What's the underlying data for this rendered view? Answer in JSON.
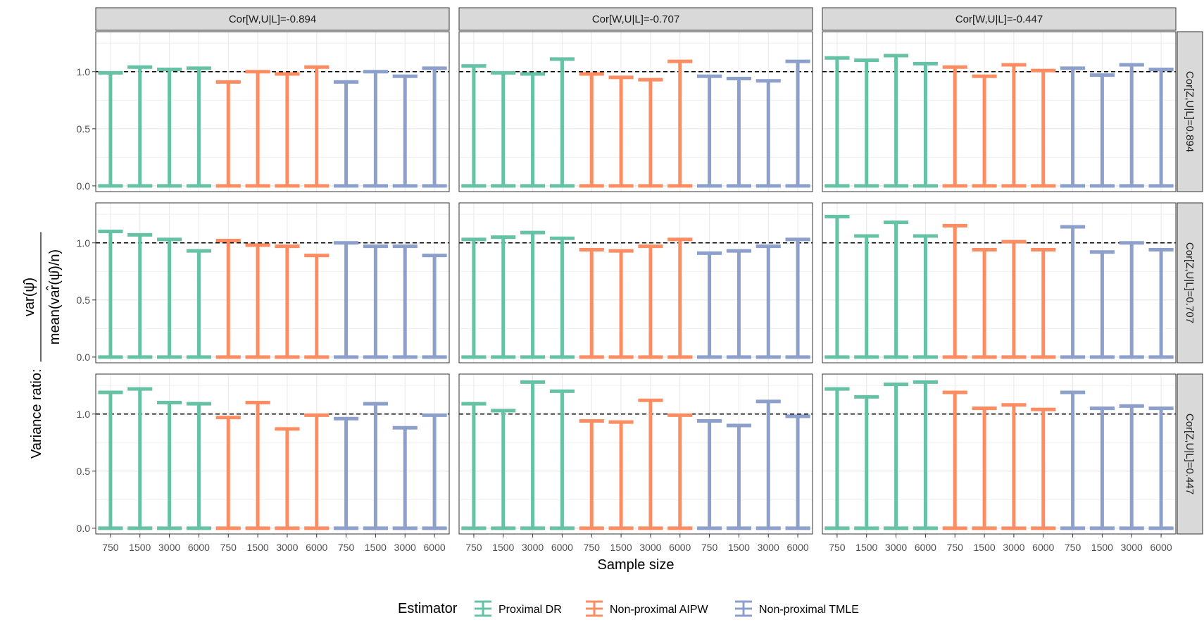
{
  "chart_data": {
    "type": "errorbar",
    "ylabel_prefix": "Variance ratio:",
    "ylabel_numerator": "var(ψ̂)",
    "ylabel_denominator": "mean(var̂(ψ̂)/n)",
    "xlabel": "Sample size",
    "ylim": [
      -0.05,
      1.35
    ],
    "yticks": [
      0.0,
      0.5,
      1.0
    ],
    "ytick_labels": [
      "0.0",
      "0.5",
      "1.0"
    ],
    "reference_line": 1.0,
    "sample_sizes": [
      "750",
      "1500",
      "3000",
      "6000"
    ],
    "col_facets": [
      "Cor[W,U|L]=-0.894",
      "Cor[W,U|L]=-0.707",
      "Cor[W,U|L]=-0.447"
    ],
    "row_facets": [
      "Cor[Z,U|L]=0.894",
      "Cor[Z,U|L]=0.707",
      "Cor[Z,U|L]=0.447"
    ],
    "estimators": [
      {
        "name": "Proximal DR",
        "color": "#66c2a5"
      },
      {
        "name": "Non-proximal AIPW",
        "color": "#fc8d62"
      },
      {
        "name": "Non-proximal TMLE",
        "color": "#8da0cb"
      }
    ],
    "legend_title": "Estimator",
    "panels": [
      [
        {
          "Proximal DR": [
            0.99,
            1.04,
            1.02,
            1.03
          ],
          "Non-proximal AIPW": [
            0.91,
            1.0,
            0.98,
            1.04
          ],
          "Non-proximal TMLE": [
            0.91,
            1.0,
            0.96,
            1.03
          ]
        },
        {
          "Proximal DR": [
            1.05,
            0.99,
            0.98,
            1.11
          ],
          "Non-proximal AIPW": [
            0.98,
            0.95,
            0.93,
            1.09
          ],
          "Non-proximal TMLE": [
            0.96,
            0.94,
            0.92,
            1.09
          ]
        },
        {
          "Proximal DR": [
            1.12,
            1.1,
            1.14,
            1.07
          ],
          "Non-proximal AIPW": [
            1.04,
            0.96,
            1.06,
            1.01
          ],
          "Non-proximal TMLE": [
            1.03,
            0.97,
            1.06,
            1.02
          ]
        }
      ],
      [
        {
          "Proximal DR": [
            1.1,
            1.07,
            1.03,
            0.93
          ],
          "Non-proximal AIPW": [
            1.02,
            0.98,
            0.97,
            0.89
          ],
          "Non-proximal TMLE": [
            1.0,
            0.97,
            0.97,
            0.89
          ]
        },
        {
          "Proximal DR": [
            1.03,
            1.05,
            1.09,
            1.04
          ],
          "Non-proximal AIPW": [
            0.94,
            0.93,
            0.97,
            1.03
          ],
          "Non-proximal TMLE": [
            0.91,
            0.93,
            0.97,
            1.03
          ]
        },
        {
          "Proximal DR": [
            1.23,
            1.06,
            1.18,
            1.06
          ],
          "Non-proximal AIPW": [
            1.15,
            0.94,
            1.01,
            0.94
          ],
          "Non-proximal TMLE": [
            1.14,
            0.92,
            1.0,
            0.94
          ]
        }
      ],
      [
        {
          "Proximal DR": [
            1.19,
            1.22,
            1.1,
            1.09
          ],
          "Non-proximal AIPW": [
            0.97,
            1.1,
            0.87,
            0.99
          ],
          "Non-proximal TMLE": [
            0.96,
            1.09,
            0.88,
            0.99
          ]
        },
        {
          "Proximal DR": [
            1.09,
            1.03,
            1.28,
            1.2
          ],
          "Non-proximal AIPW": [
            0.94,
            0.93,
            1.12,
            0.99
          ],
          "Non-proximal TMLE": [
            0.94,
            0.9,
            1.11,
            0.98
          ]
        },
        {
          "Proximal DR": [
            1.22,
            1.15,
            1.26,
            1.28
          ],
          "Non-proximal AIPW": [
            1.19,
            1.05,
            1.08,
            1.04
          ],
          "Non-proximal TMLE": [
            1.19,
            1.05,
            1.07,
            1.05
          ]
        }
      ]
    ]
  }
}
